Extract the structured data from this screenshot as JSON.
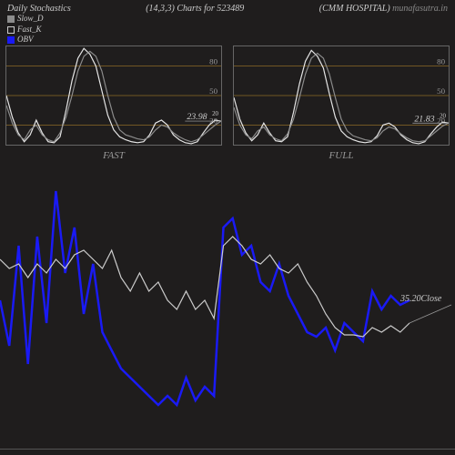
{
  "header": {
    "left": "Daily Stochastics",
    "center": "(14,3,3) Charts for 523489",
    "right_company": "(CMM HOSPITAL)",
    "right_site": "munafasutra.in"
  },
  "legend": {
    "items": [
      {
        "swatch_color": "#8c8c8c",
        "label": "Slow_D",
        "swatch_border": "none"
      },
      {
        "swatch_color": "transparent",
        "label": "Fast_K",
        "swatch_border": "1px solid #ccc"
      },
      {
        "swatch_color": "#1a1af5",
        "label": "OBV",
        "swatch_border": "none"
      }
    ]
  },
  "mini_charts": {
    "grid_color": "#bd8b2b",
    "grid_values": [
      80,
      50,
      20
    ],
    "line1_color": "#8c8c8c",
    "line2_color": "#e6e6e6",
    "fast": {
      "label": "FAST",
      "value_text": "23.98",
      "value_sup": "20",
      "slow": [
        40,
        22,
        10,
        5,
        15,
        20,
        10,
        5,
        3,
        12,
        28,
        50,
        75,
        90,
        95,
        90,
        75,
        50,
        28,
        15,
        10,
        8,
        6,
        5,
        8,
        15,
        20,
        18,
        12,
        8,
        5,
        3,
        5,
        10,
        15,
        20,
        24
      ],
      "fastk": [
        50,
        28,
        12,
        3,
        10,
        25,
        12,
        3,
        2,
        8,
        35,
        65,
        88,
        98,
        92,
        80,
        55,
        30,
        15,
        8,
        5,
        3,
        2,
        3,
        10,
        22,
        25,
        20,
        10,
        5,
        2,
        1,
        3,
        12,
        20,
        25,
        24
      ]
    },
    "full": {
      "label": "FULL",
      "value_text": "21.83",
      "value_sup": "20",
      "slow": [
        38,
        20,
        10,
        6,
        14,
        18,
        10,
        6,
        4,
        11,
        26,
        48,
        72,
        88,
        93,
        88,
        72,
        48,
        26,
        14,
        9,
        7,
        5,
        4,
        7,
        14,
        18,
        16,
        11,
        7,
        4,
        3,
        4,
        9,
        14,
        19,
        22
      ],
      "fastk": [
        48,
        26,
        12,
        4,
        10,
        22,
        12,
        4,
        3,
        8,
        33,
        62,
        85,
        96,
        90,
        78,
        52,
        28,
        14,
        8,
        5,
        3,
        2,
        3,
        9,
        20,
        22,
        18,
        10,
        5,
        2,
        1,
        3,
        11,
        18,
        23,
        22
      ]
    }
  },
  "main_chart": {
    "bg_color": "#1f1d1d",
    "obv_color": "#1a1af5",
    "close_color": "#cccccc",
    "close_label": "35.20Close",
    "obv_stroke_width": 2.5,
    "close_stroke_width": 1.2,
    "obv": [
      140,
      190,
      80,
      210,
      70,
      165,
      20,
      110,
      60,
      155,
      100,
      175,
      195,
      215,
      225,
      235,
      245,
      255,
      245,
      255,
      225,
      250,
      235,
      245,
      60,
      50,
      90,
      80,
      120,
      130,
      100,
      135,
      155,
      175,
      180,
      170,
      195,
      165,
      175,
      185,
      130,
      150,
      135,
      145,
      140
    ],
    "close": [
      95,
      105,
      100,
      115,
      100,
      110,
      95,
      105,
      90,
      85,
      95,
      105,
      85,
      115,
      130,
      110,
      130,
      120,
      140,
      150,
      130,
      150,
      140,
      160,
      80,
      70,
      80,
      95,
      100,
      90,
      105,
      110,
      100,
      120,
      135,
      155,
      170,
      178,
      178,
      180,
      170,
      175,
      168,
      175,
      165
    ]
  }
}
